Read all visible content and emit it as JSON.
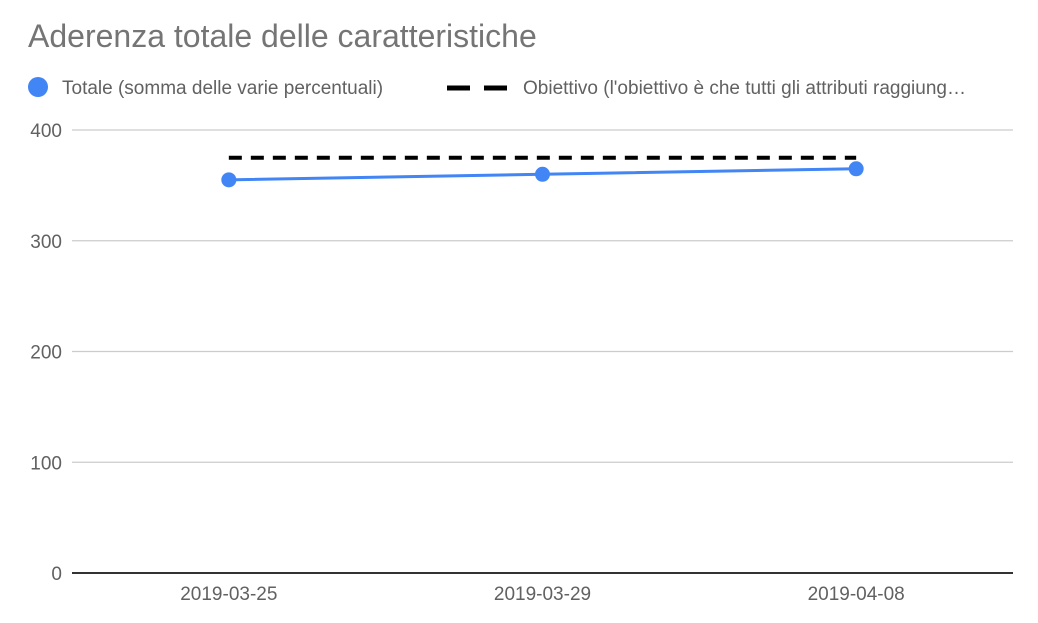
{
  "chart_data": {
    "type": "line",
    "title": "Aderenza totale delle caratteristiche",
    "categories": [
      "2019-03-25",
      "2019-03-29",
      "2019-04-08"
    ],
    "series": [
      {
        "name": "Totale (somma delle varie percentuali)",
        "values": [
          355,
          360,
          365
        ],
        "color": "#4285f4",
        "style": "solid",
        "markers": true
      },
      {
        "name": "Obiettivo (l'obiettivo è che tutti gli attributi raggiung…",
        "values": [
          375,
          375,
          375
        ],
        "color": "#000000",
        "style": "dashed",
        "markers": false
      }
    ],
    "ylim": [
      0,
      400
    ],
    "yticks": [
      0,
      100,
      200,
      300,
      400
    ],
    "grid": true,
    "legend_position": "top"
  }
}
